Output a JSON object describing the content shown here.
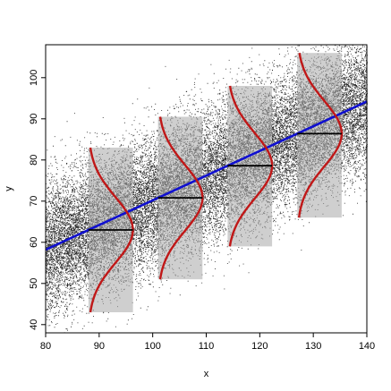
{
  "chart_data": {
    "type": "scatter",
    "title": "",
    "xlabel": "x",
    "ylabel": "y",
    "xlim": [
      80,
      140
    ],
    "ylim": [
      38,
      108
    ],
    "x_ticks": [
      80,
      90,
      100,
      110,
      120,
      130,
      140
    ],
    "y_ticks": [
      40,
      50,
      60,
      70,
      80,
      90,
      100
    ],
    "x_tick_labels": [
      "80",
      "90",
      "100",
      "110",
      "120",
      "130",
      "140"
    ],
    "y_tick_labels": [
      "40",
      "50",
      "60",
      "70",
      "80",
      "90",
      "100"
    ],
    "grid": false,
    "legend": "none",
    "scatter_cloud": {
      "x_range": [
        80,
        140
      ],
      "regression": {
        "intercept": 10.2,
        "slope": 0.6
      },
      "residual_sd": 8,
      "color": "#000000"
    },
    "regression_line": {
      "x": [
        80,
        140
      ],
      "y": [
        58.2,
        94.2
      ],
      "color": "#1010d0"
    },
    "conditional_distributions": [
      {
        "x": 88.0,
        "mean": 63.0,
        "sd": 8,
        "y_range": [
          43,
          83
        ]
      },
      {
        "x": 101.0,
        "mean": 70.8,
        "sd": 8,
        "y_range": [
          51,
          90.5
        ]
      },
      {
        "x": 114.0,
        "mean": 78.6,
        "sd": 8,
        "y_range": [
          59,
          98
        ]
      },
      {
        "x": 127.0,
        "mean": 86.4,
        "sd": 8,
        "y_range": [
          66,
          106
        ]
      }
    ],
    "curve_height_x_units": 8.3,
    "colors": {
      "density_curve": "#c01818",
      "mean_line": "#000000",
      "shaded_band": "#a8a8a8",
      "regression": "#1010d0"
    }
  }
}
